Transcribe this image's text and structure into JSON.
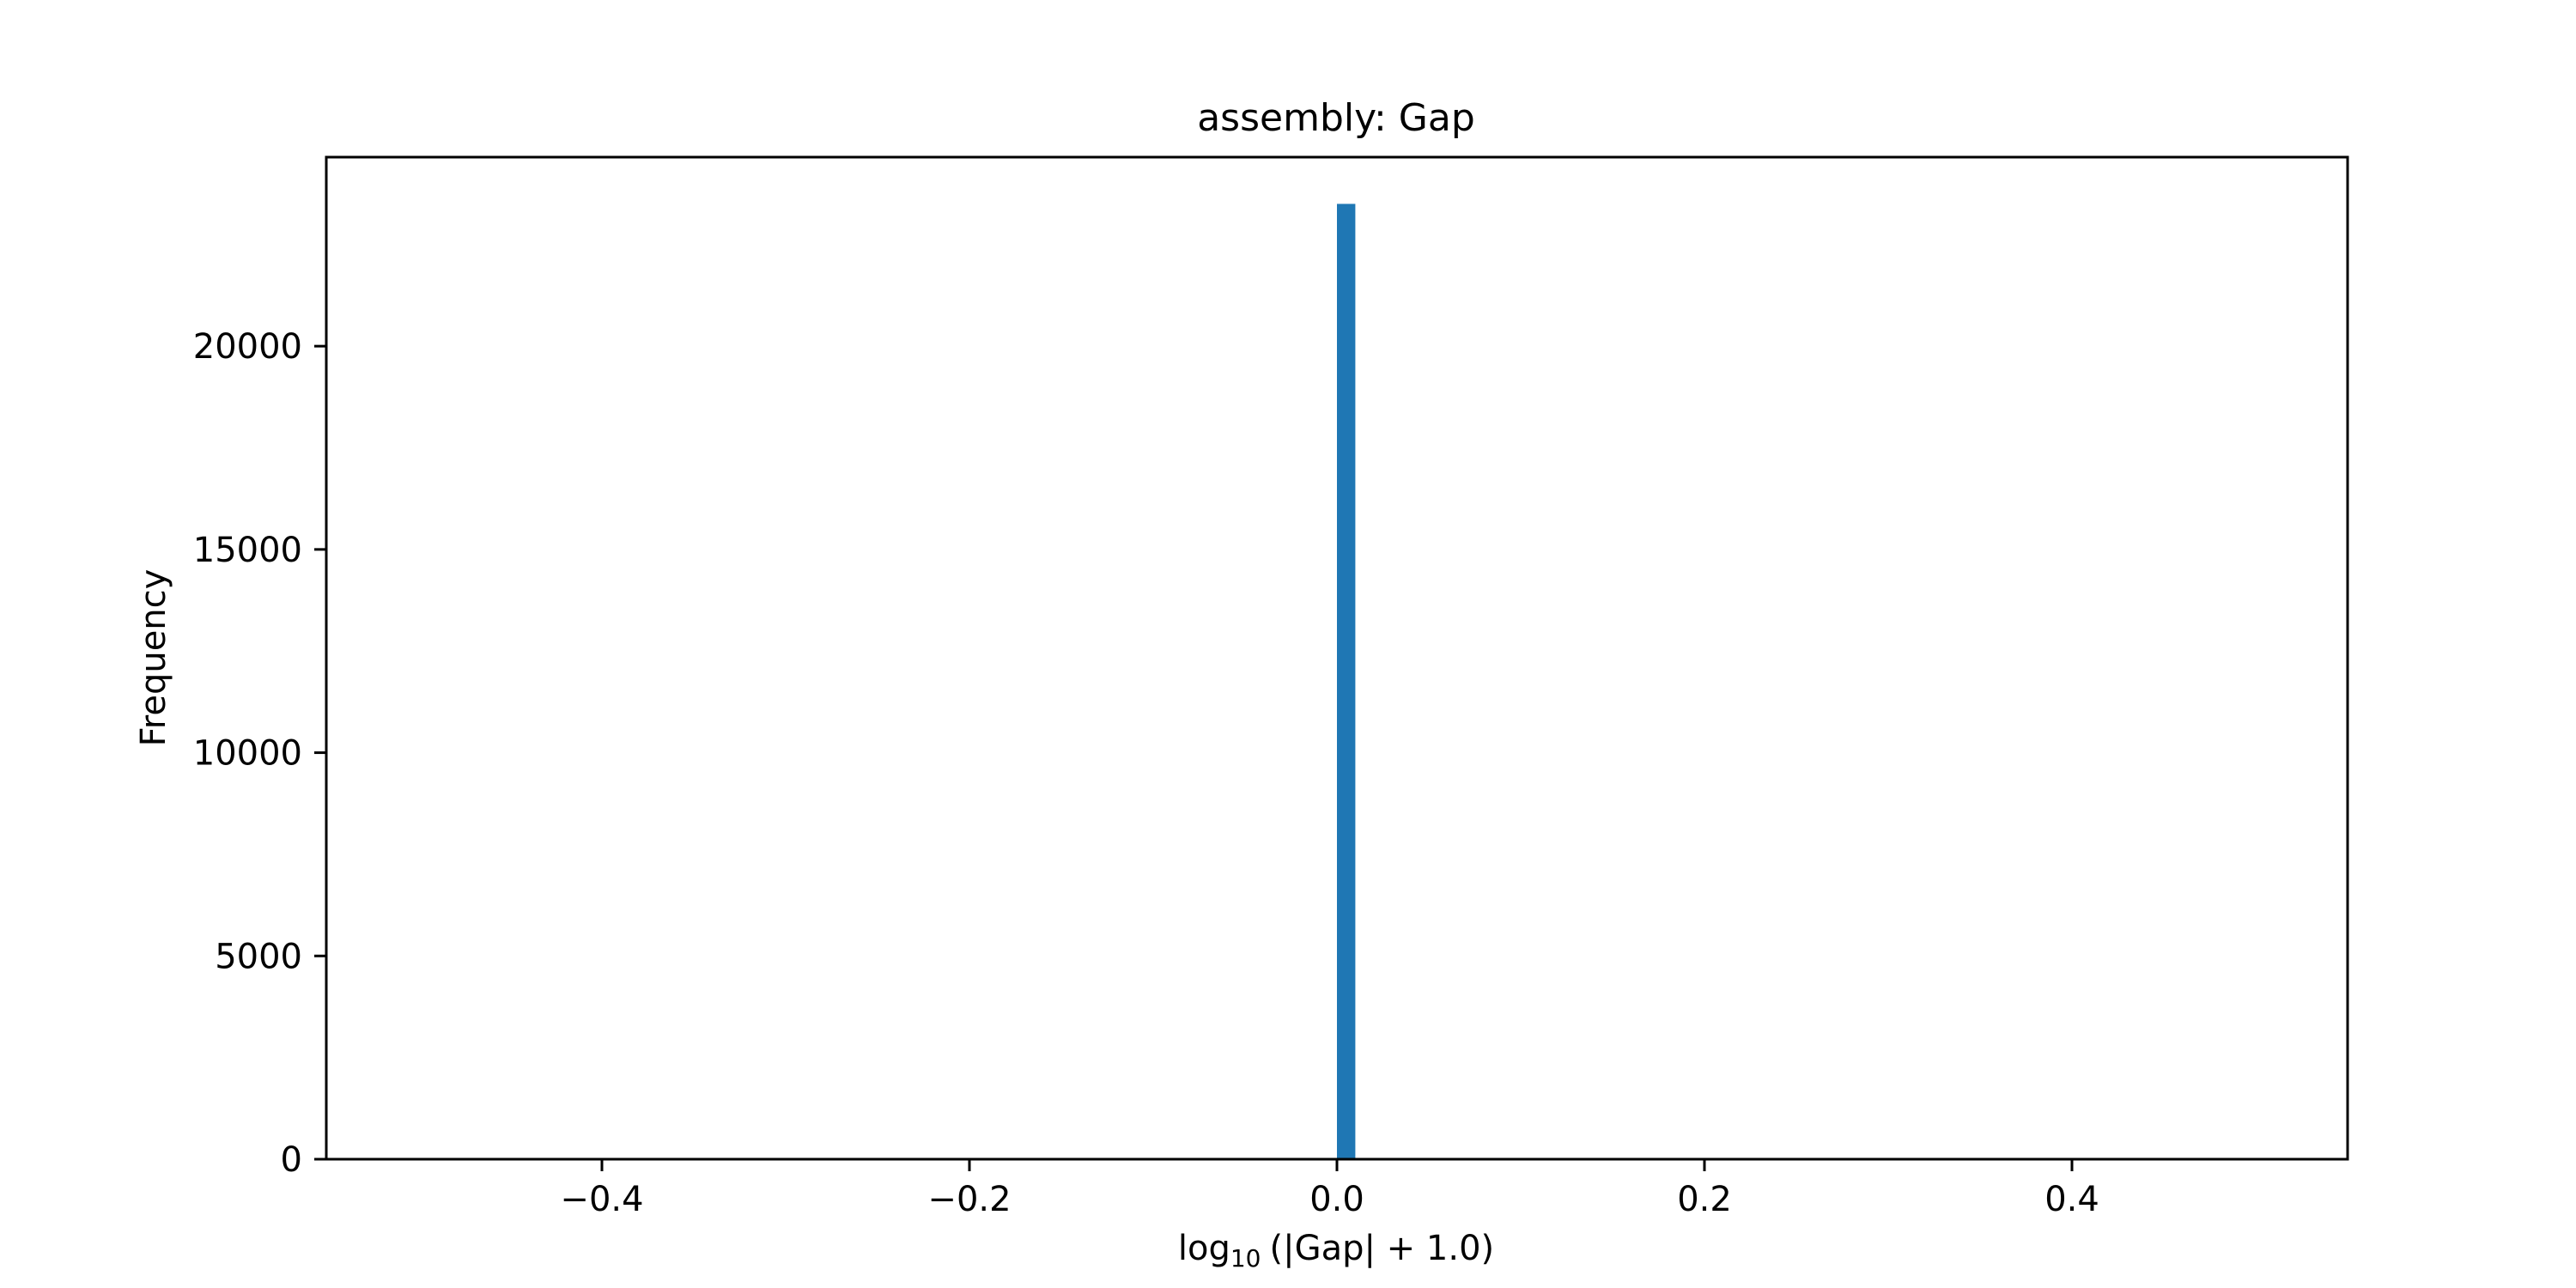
{
  "chart_data": {
    "type": "bar",
    "title": "assembly: Gap",
    "xlabel": {
      "prefix": "log",
      "subscript": "10",
      "suffix": "(|Gap| + 1.0)"
    },
    "ylabel": "Frequency",
    "xlim": [
      -0.55,
      0.55
    ],
    "ylim": [
      0,
      24650
    ],
    "x_ticks": [
      -0.4,
      -0.2,
      0.0,
      0.2,
      0.4
    ],
    "x_tick_labels": [
      "−0.4",
      "−0.2",
      "0.0",
      "0.2",
      "0.4"
    ],
    "y_ticks": [
      0,
      5000,
      10000,
      15000,
      20000
    ],
    "y_tick_labels": [
      "0",
      "5000",
      "10000",
      "15000",
      "20000"
    ],
    "bins": [
      {
        "x0": 0.0,
        "x1": 0.01,
        "value": 23500
      }
    ],
    "bar_color": "#1f77b4",
    "grid": false,
    "legend": "none"
  }
}
